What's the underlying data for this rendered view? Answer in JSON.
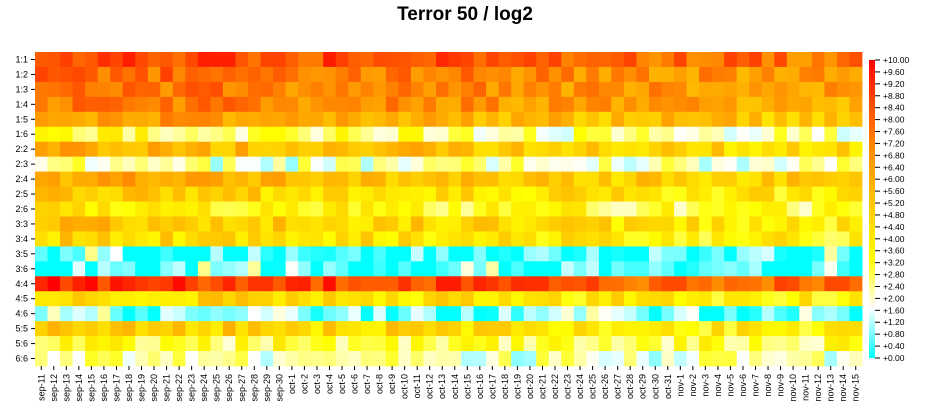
{
  "chart_data": {
    "type": "heatmap",
    "title": "Terror 50 / log2",
    "xlabel": "",
    "ylabel": "",
    "x_categories": [
      "sep-11",
      "sep-12",
      "sep-13",
      "sep-14",
      "sep-15",
      "sep-16",
      "sep-17",
      "sep-18",
      "sep-19",
      "sep-20",
      "sep-21",
      "sep-22",
      "sep-23",
      "sep-24",
      "sep-25",
      "sep-26",
      "sep-27",
      "sep-28",
      "sep-29",
      "sep-30",
      "oct-1",
      "oct-2",
      "oct-3",
      "oct-4",
      "oct-5",
      "oct-6",
      "oct-7",
      "oct-8",
      "oct-9",
      "oct-10",
      "oct-11",
      "oct-12",
      "oct-13",
      "oct-14",
      "oct-15",
      "oct-16",
      "oct-17",
      "oct-18",
      "oct-19",
      "oct-20",
      "oct-21",
      "oct-22",
      "oct-23",
      "oct-24",
      "oct-25",
      "oct-26",
      "oct-27",
      "oct-28",
      "oct-29",
      "oct-30",
      "oct-31",
      "nov-1",
      "nov-2",
      "nov-3",
      "nov-4",
      "nov-5",
      "nov-6",
      "nov-7",
      "nov-8",
      "nov-9",
      "nov-10",
      "nov-11",
      "nov-12",
      "nov-13",
      "nov-14",
      "nov-15"
    ],
    "y_categories": [
      "1:1",
      "1:2",
      "1:3",
      "1:4",
      "1:5",
      "1:6",
      "2:2",
      "2:3",
      "2:4",
      "2:5",
      "2:6",
      "3:3",
      "3:4",
      "3:5",
      "3:6",
      "4:4",
      "4:5",
      "4:6",
      "5:5",
      "5:6",
      "6:6"
    ],
    "row_levels": [
      9.0,
      8.0,
      7.8,
      7.6,
      6.6,
      3.2,
      6.0,
      2.0,
      6.2,
      5.0,
      4.0,
      5.4,
      4.8,
      0.3,
      0.2,
      9.2,
      4.8,
      0.8,
      5.2,
      3.0,
      2.0
    ],
    "colorbar": {
      "min": 0,
      "max": 10,
      "colors": [
        "#00ffff",
        "#ffffff",
        "#ffff00",
        "#ffcc00",
        "#ff9900",
        "#ff5500",
        "#ff0000"
      ],
      "tick_labels": [
        "+10.00",
        "+9.60",
        "+9.20",
        "+8.80",
        "+8.40",
        "+8.00",
        "+7.60",
        "+7.20",
        "+6.80",
        "+6.40",
        "+6.00",
        "+5.60",
        "+5.20",
        "+4.80",
        "+4.40",
        "+4.00",
        "+3.60",
        "+3.20",
        "+2.80",
        "+2.40",
        "+2.00",
        "+1.60",
        "+1.20",
        "+0.80",
        "+0.40",
        "+0.00"
      ]
    }
  }
}
